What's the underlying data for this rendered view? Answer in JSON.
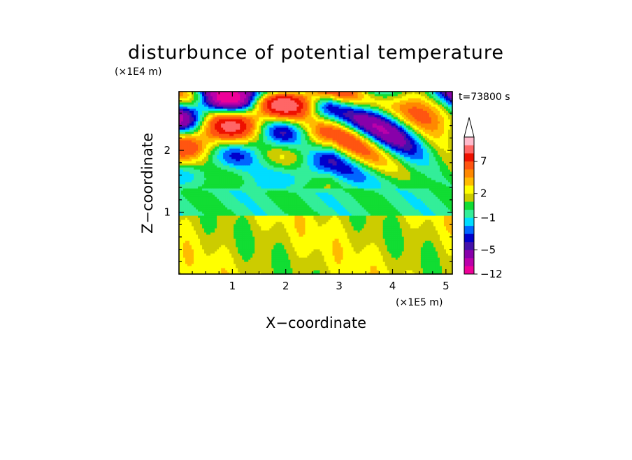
{
  "chart_data": {
    "type": "heatmap",
    "title": "disturbunce of potential temperature",
    "time_label": "t=73800 s",
    "xlabel": "X−coordinate",
    "ylabel": "Z−coordinate",
    "x_unit": "(×1E5 m)",
    "y_unit": "(×1E4 m)",
    "xlim": [
      0,
      5.12
    ],
    "ylim": [
      0,
      2.95
    ],
    "x_ticks": [
      {
        "value": 1,
        "label": "1"
      },
      {
        "value": 2,
        "label": "2"
      },
      {
        "value": 3,
        "label": "3"
      },
      {
        "value": 4,
        "label": "4"
      },
      {
        "value": 5,
        "label": "5"
      }
    ],
    "y_ticks": [
      {
        "value": 1,
        "label": "1"
      },
      {
        "value": 2,
        "label": "2"
      }
    ],
    "colorbar": {
      "levels": [
        -12,
        -9,
        -7,
        -5,
        -4,
        -3,
        -2,
        -1,
        0,
        1,
        2,
        3,
        4,
        5,
        7,
        9,
        12
      ],
      "colors": [
        "#ee0099",
        "#bb00aa",
        "#8800aa",
        "#4411aa",
        "#0000cc",
        "#0066ff",
        "#00ddff",
        "#33ee99",
        "#11dd33",
        "#cccc00",
        "#ffff00",
        "#ffbb00",
        "#ff8800",
        "#ff5511",
        "#ee1100",
        "#ff6666",
        "#ffbbcc"
      ],
      "tick_labels": [
        {
          "level": 7,
          "label": "7"
        },
        {
          "level": 2,
          "label": "2"
        },
        {
          "level": -1,
          "label": "−1"
        },
        {
          "level": -5,
          "label": "−5"
        },
        {
          "level": -12,
          "label": "−12"
        }
      ],
      "extend_top": true
    }
  }
}
